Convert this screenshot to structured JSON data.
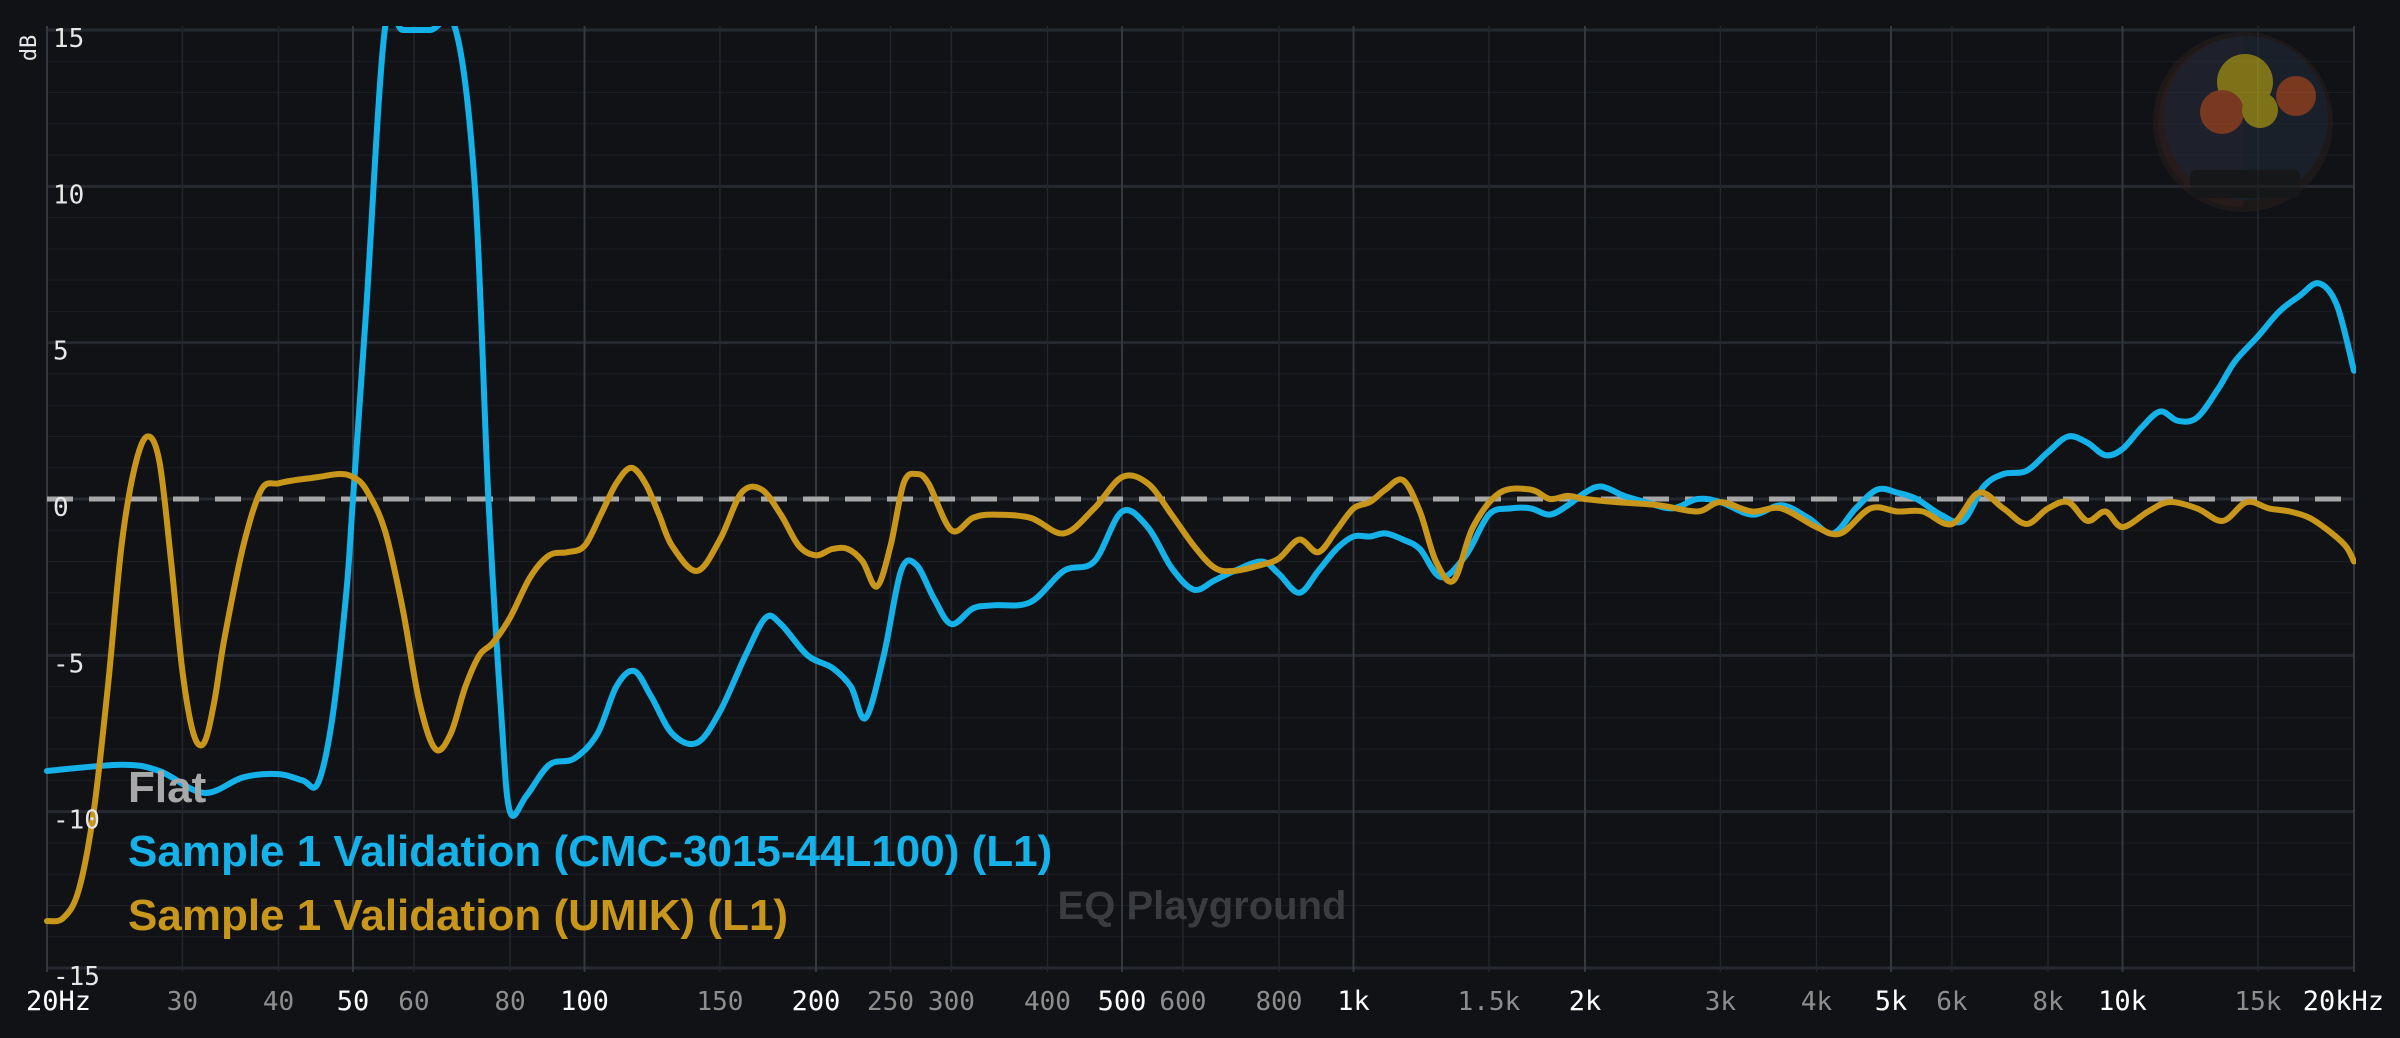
{
  "chart_data": {
    "type": "line",
    "ylabel": "dB",
    "watermark": "EQ Playground",
    "x_scale": "log",
    "xlim": [
      20,
      20000
    ],
    "ylim": [
      -15,
      15
    ],
    "grid": true,
    "legend_placement": "bottom-left",
    "yticks": [
      {
        "value": 15,
        "label": "15"
      },
      {
        "value": 10,
        "label": "10"
      },
      {
        "value": 5,
        "label": "5"
      },
      {
        "value": 0,
        "label": "0"
      },
      {
        "value": -5,
        "label": "-5"
      },
      {
        "value": -10,
        "label": "-10"
      },
      {
        "value": -15,
        "label": "-15"
      }
    ],
    "xticks": [
      {
        "value": 20,
        "label": "20Hz",
        "major": true
      },
      {
        "value": 30,
        "label": "30",
        "major": false
      },
      {
        "value": 40,
        "label": "40",
        "major": false
      },
      {
        "value": 50,
        "label": "50",
        "major": true
      },
      {
        "value": 60,
        "label": "60",
        "major": false
      },
      {
        "value": 80,
        "label": "80",
        "major": false
      },
      {
        "value": 100,
        "label": "100",
        "major": true
      },
      {
        "value": 150,
        "label": "150",
        "major": false
      },
      {
        "value": 200,
        "label": "200",
        "major": true
      },
      {
        "value": 250,
        "label": "250",
        "major": false
      },
      {
        "value": 300,
        "label": "300",
        "major": false
      },
      {
        "value": 400,
        "label": "400",
        "major": false
      },
      {
        "value": 500,
        "label": "500",
        "major": true
      },
      {
        "value": 600,
        "label": "600",
        "major": false
      },
      {
        "value": 800,
        "label": "800",
        "major": false
      },
      {
        "value": 1000,
        "label": "1k",
        "major": true
      },
      {
        "value": 1500,
        "label": "1.5k",
        "major": false
      },
      {
        "value": 2000,
        "label": "2k",
        "major": true
      },
      {
        "value": 3000,
        "label": "3k",
        "major": false
      },
      {
        "value": 4000,
        "label": "4k",
        "major": false
      },
      {
        "value": 5000,
        "label": "5k",
        "major": true
      },
      {
        "value": 6000,
        "label": "6k",
        "major": false
      },
      {
        "value": 8000,
        "label": "8k",
        "major": false
      },
      {
        "value": 10000,
        "label": "10k",
        "major": true
      },
      {
        "value": 15000,
        "label": "15k",
        "major": false
      },
      {
        "value": 20000,
        "label": "20kHz",
        "major": true
      }
    ],
    "series": [
      {
        "name": "Flat",
        "color": "#a8a8a8",
        "dashed": true,
        "x": [
          20,
          20000
        ],
        "y": [
          0,
          0
        ]
      },
      {
        "name": "Sample 1 Validation (CMC-3015-44L100) (L1)",
        "color": "#15b2ea",
        "dashed": false,
        "x": [
          20,
          25,
          28,
          32,
          36,
          40,
          43,
          45,
          47,
          49,
          50,
          52,
          55,
          58,
          63,
          68,
          72,
          75,
          78,
          80,
          84,
          90,
          97,
          104,
          110,
          116,
          122,
          130,
          140,
          150,
          162,
          172,
          180,
          195,
          210,
          222,
          232,
          245,
          258,
          270,
          285,
          300,
          320,
          340,
          380,
          420,
          460,
          500,
          540,
          580,
          620,
          660,
          700,
          760,
          800,
          850,
          900,
          950,
          1000,
          1050,
          1100,
          1160,
          1220,
          1300,
          1400,
          1500,
          1600,
          1700,
          1800,
          1900,
          2000,
          2100,
          2250,
          2400,
          2600,
          2800,
          3000,
          3300,
          3600,
          3900,
          4200,
          4500,
          4800,
          5100,
          5400,
          5800,
          6200,
          6600,
          7000,
          7500,
          8000,
          8500,
          9000,
          9500,
          10000,
          10600,
          11200,
          11800,
          12500,
          13300,
          14000,
          15000,
          16000,
          17000,
          18000,
          19000,
          20000
        ],
        "y": [
          -8.7,
          -8.5,
          -8.7,
          -9.4,
          -8.9,
          -8.8,
          -9.0,
          -9.1,
          -7.0,
          -3.0,
          0.0,
          6.0,
          15.0,
          15.0,
          15.0,
          15.0,
          10.0,
          0.0,
          -7.0,
          -10.0,
          -9.5,
          -8.5,
          -8.3,
          -7.5,
          -6.0,
          -5.5,
          -6.3,
          -7.5,
          -7.8,
          -6.8,
          -5.0,
          -3.8,
          -4.0,
          -5.0,
          -5.4,
          -6.0,
          -7.0,
          -5.0,
          -2.3,
          -2.1,
          -3.2,
          -4.0,
          -3.5,
          -3.4,
          -3.3,
          -2.3,
          -2.0,
          -0.4,
          -0.9,
          -2.2,
          -2.9,
          -2.6,
          -2.3,
          -2.0,
          -2.4,
          -3.0,
          -2.3,
          -1.6,
          -1.2,
          -1.2,
          -1.1,
          -1.3,
          -1.6,
          -2.5,
          -1.8,
          -0.5,
          -0.3,
          -0.3,
          -0.5,
          -0.2,
          0.2,
          0.4,
          0.1,
          -0.1,
          -0.3,
          0.0,
          -0.1,
          -0.5,
          -0.2,
          -0.6,
          -1.1,
          -0.3,
          0.3,
          0.2,
          0.0,
          -0.5,
          -0.7,
          0.4,
          0.8,
          0.9,
          1.5,
          2.0,
          1.8,
          1.4,
          1.6,
          2.3,
          2.8,
          2.5,
          2.6,
          3.5,
          4.4,
          5.2,
          6.0,
          6.5,
          6.9,
          6.2,
          4.1
        ]
      },
      {
        "name": "Sample 1 Validation (UMIK) (L1)",
        "color": "#c8961a",
        "dashed": false,
        "x": [
          20,
          21,
          22,
          23,
          24,
          25,
          26,
          27,
          28,
          29,
          30,
          31,
          32,
          33,
          34,
          36,
          38,
          40,
          42,
          45,
          48,
          50,
          52,
          55,
          58,
          61,
          64,
          67,
          70,
          73,
          76,
          80,
          85,
          90,
          95,
          100,
          105,
          110,
          115,
          120,
          125,
          130,
          140,
          150,
          160,
          170,
          180,
          190,
          200,
          210,
          220,
          230,
          240,
          250,
          260,
          270,
          280,
          300,
          320,
          340,
          380,
          420,
          460,
          500,
          540,
          580,
          620,
          660,
          700,
          760,
          800,
          850,
          900,
          950,
          1000,
          1050,
          1100,
          1160,
          1220,
          1280,
          1350,
          1430,
          1550,
          1700,
          1800,
          1900,
          2000,
          2200,
          2500,
          2800,
          3000,
          3300,
          3600,
          4000,
          4300,
          4700,
          5100,
          5500,
          6000,
          6500,
          7000,
          7500,
          8000,
          8500,
          9000,
          9500,
          10000,
          10800,
          11500,
          12500,
          13500,
          14500,
          15500,
          16500,
          17500,
          18500,
          19500,
          20000
        ],
        "y": [
          -13.5,
          -13.4,
          -12.5,
          -10.0,
          -6.0,
          -1.5,
          1.0,
          2.0,
          1.2,
          -2.0,
          -5.5,
          -7.5,
          -7.8,
          -6.5,
          -4.5,
          -1.5,
          0.3,
          0.5,
          0.6,
          0.7,
          0.8,
          0.7,
          0.3,
          -1.0,
          -3.5,
          -6.5,
          -8.0,
          -7.5,
          -6.0,
          -5.0,
          -4.6,
          -3.8,
          -2.5,
          -1.8,
          -1.7,
          -1.5,
          -0.5,
          0.5,
          1.0,
          0.5,
          -0.5,
          -1.5,
          -2.3,
          -1.3,
          0.2,
          0.3,
          -0.5,
          -1.5,
          -1.8,
          -1.6,
          -1.6,
          -2.0,
          -2.8,
          -1.5,
          0.5,
          0.8,
          0.5,
          -1.0,
          -0.6,
          -0.5,
          -0.6,
          -1.1,
          -0.3,
          0.7,
          0.5,
          -0.5,
          -1.5,
          -2.2,
          -2.3,
          -2.1,
          -1.9,
          -1.3,
          -1.7,
          -1.0,
          -0.3,
          -0.1,
          0.3,
          0.6,
          -0.4,
          -2.0,
          -2.6,
          -0.9,
          0.2,
          0.3,
          0.0,
          0.1,
          0.0,
          -0.1,
          -0.2,
          -0.4,
          -0.1,
          -0.4,
          -0.3,
          -0.9,
          -1.1,
          -0.3,
          -0.4,
          -0.4,
          -0.8,
          0.2,
          -0.3,
          -0.8,
          -0.3,
          -0.1,
          -0.7,
          -0.4,
          -0.9,
          -0.4,
          -0.1,
          -0.3,
          -0.7,
          -0.1,
          -0.3,
          -0.4,
          -0.6,
          -1.0,
          -1.5,
          -2.0
        ]
      }
    ]
  }
}
